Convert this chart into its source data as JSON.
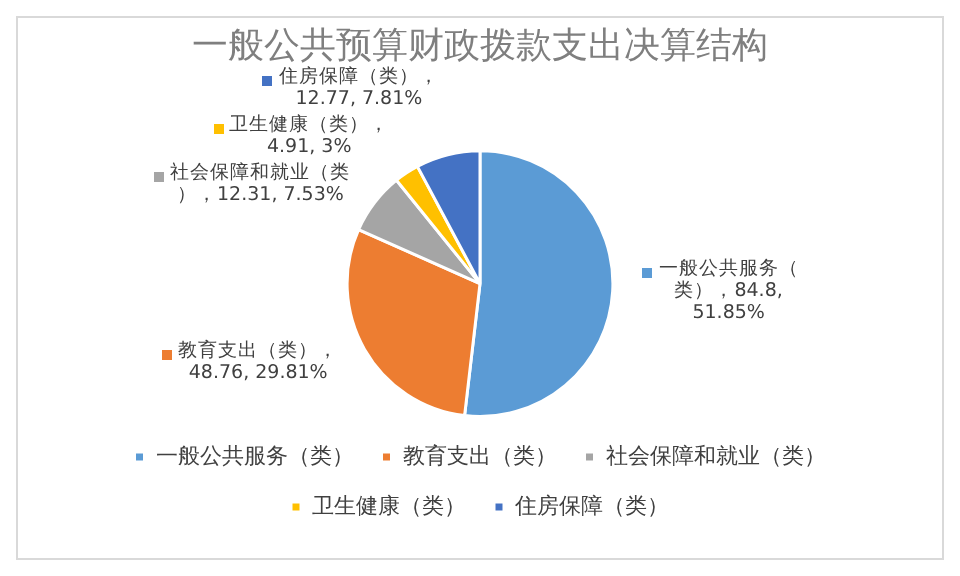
{
  "chart_data": {
    "type": "pie",
    "title": "一般公共预算财政拨款支出决算结构",
    "categories": [
      "一般公共服务（类）",
      "教育支出（类）",
      "社会保障和就业（类）",
      "卫生健康（类）",
      "住房保障（类）"
    ],
    "values": [
      84.8,
      48.76,
      12.31,
      4.91,
      12.77
    ],
    "colors": [
      "#5b9bd5",
      "#ed7d31",
      "#a5a5a5",
      "#ffc000",
      "#4472c4"
    ],
    "value_labels": [
      "一般公共服务（类），84.8, 51.85%",
      "教育支出（类），48.76, 29.81%",
      "社会保障和就业（类），12.31, 7.53%",
      "卫生健康（类），4.91, 3%",
      "住房保障（类），12.77, 7.81%"
    ],
    "legend": "bottom"
  }
}
